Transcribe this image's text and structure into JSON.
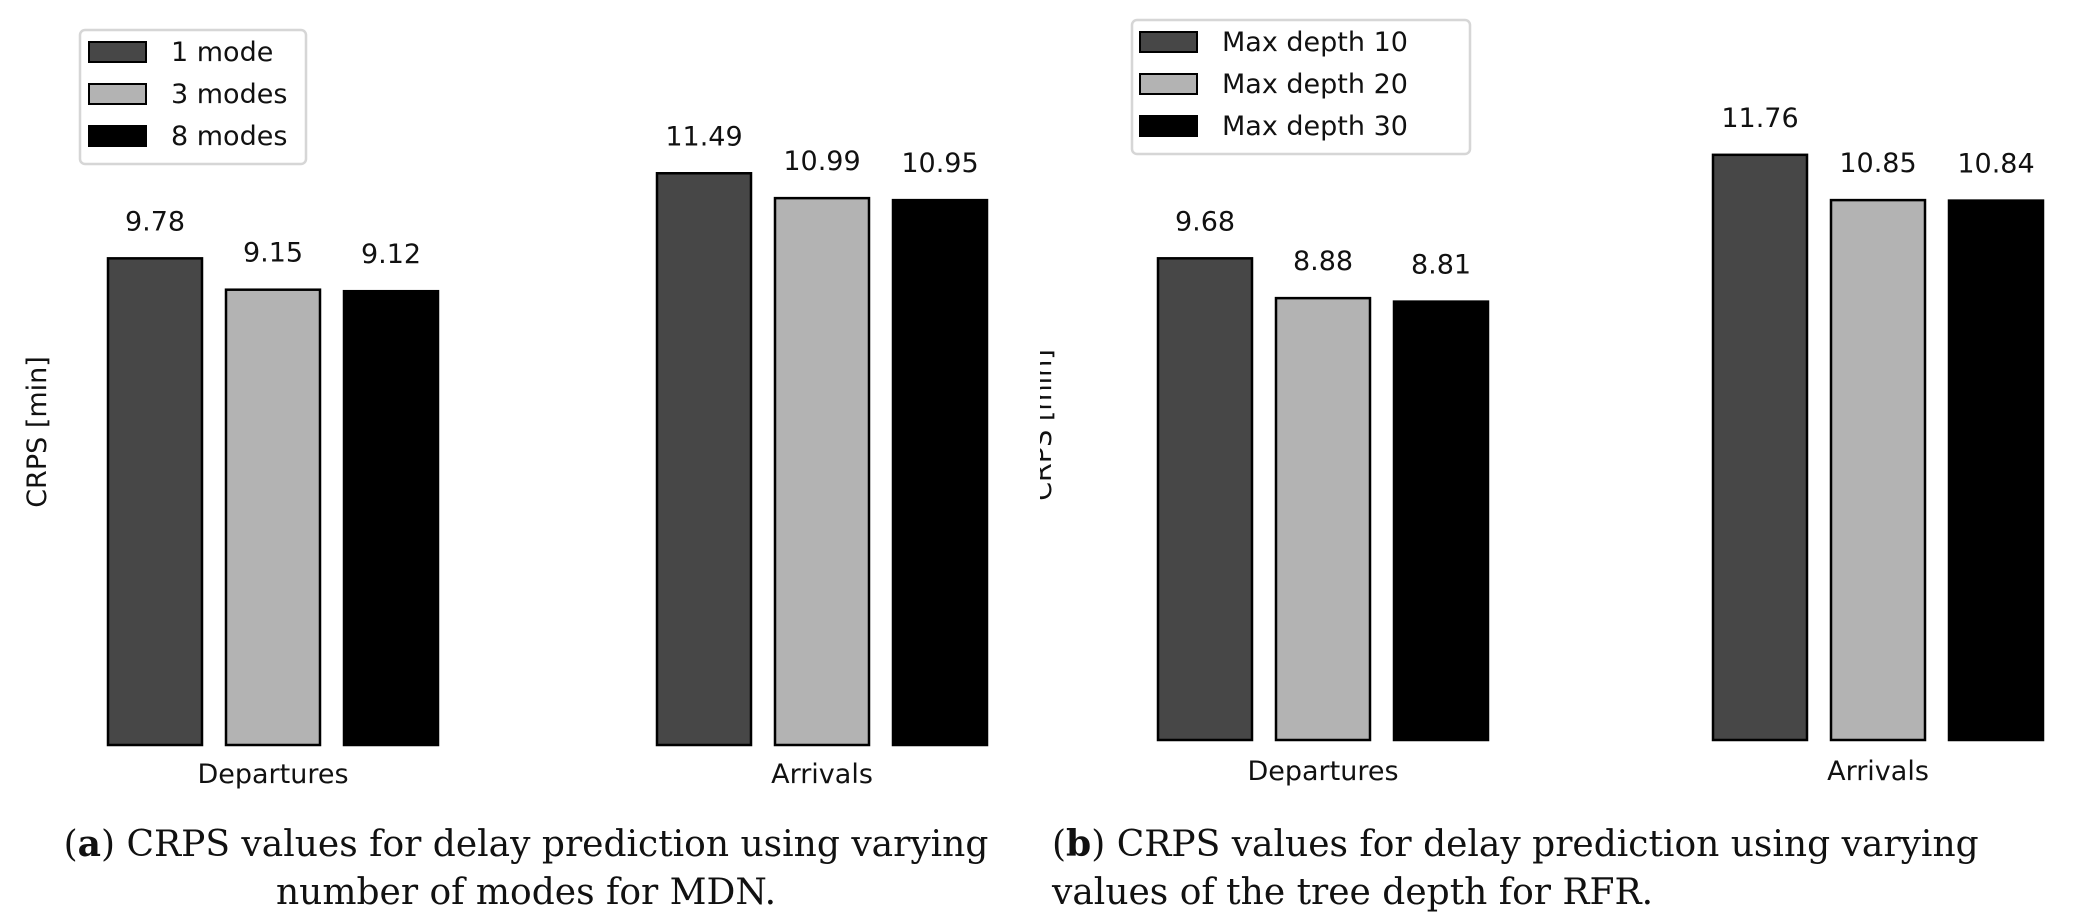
{
  "chart_data": [
    {
      "type": "bar",
      "ylabel": "CRPS [min]",
      "categories": [
        "Departures",
        "Arrivals"
      ],
      "series": [
        {
          "name": "1 mode",
          "values": [
            9.78,
            11.49
          ],
          "labels": [
            "9.78",
            "11.49"
          ],
          "color": "#474747"
        },
        {
          "name": "3 modes",
          "values": [
            9.15,
            10.99
          ],
          "labels": [
            "9.15",
            "10.99"
          ],
          "color": "#b3b3b3"
        },
        {
          "name": "8 modes",
          "values": [
            9.12,
            10.95
          ],
          "labels": [
            "9.12",
            "10.95"
          ],
          "color": "#000000"
        }
      ],
      "legend_position": "top-left",
      "ylim": [
        0,
        12.5
      ],
      "grid": false
    },
    {
      "type": "bar",
      "ylabel": "CRPS [min]",
      "categories": [
        "Departures",
        "Arrivals"
      ],
      "series": [
        {
          "name": "Max depth 10",
          "values": [
            9.68,
            11.76
          ],
          "labels": [
            "9.68",
            "11.76"
          ],
          "color": "#474747"
        },
        {
          "name": "Max depth 20",
          "values": [
            8.88,
            10.85
          ],
          "labels": [
            "8.88",
            "10.85"
          ],
          "color": "#b3b3b3"
        },
        {
          "name": "Max depth 30",
          "values": [
            8.81,
            10.84
          ],
          "labels": [
            "8.81",
            "10.84"
          ],
          "color": "#000000"
        }
      ],
      "legend_position": "top-left",
      "ylim": [
        0,
        12.5
      ],
      "grid": false
    }
  ],
  "captions": [
    {
      "tag": "a",
      "line1": "CRPS values for delay prediction using varying",
      "line2": "number of modes for MDN."
    },
    {
      "tag": "b",
      "line1": "CRPS values for delay prediction using varying",
      "line2": "values of the tree depth for RFR."
    }
  ]
}
